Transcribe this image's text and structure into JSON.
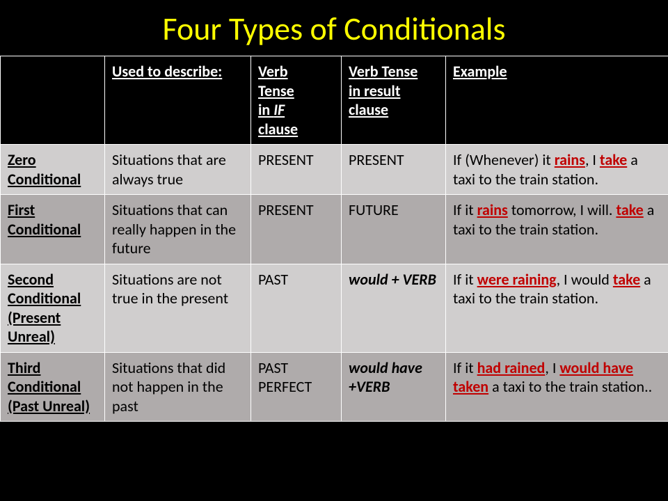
{
  "title": "Four Types of Conditionals",
  "headers": {
    "h1": "",
    "h2": "Used to describe:",
    "h3_l1": "Verb",
    "h3_l2": "Tense",
    "h3_l3": " in ",
    "h3_if": "IF",
    "h3_clause": "clause",
    "h4_l1": "Verb  Tense",
    "h4_l2": "in result clause",
    "h5": "Example"
  },
  "rows": [
    {
      "name": "Zero Conditional",
      "desc": "Situations that are always true",
      "if": "PRESENT",
      "result": "PRESENT",
      "ex_pre": "If (Whenever) it ",
      "ex_v1": "rains",
      "ex_mid": ", I ",
      "ex_v2": "take",
      "ex_post": " a taxi to the train station."
    },
    {
      "name": "First Conditional",
      "desc": "Situations that can really happen in the future",
      "if": "PRESENT",
      "result": "FUTURE",
      "ex_pre": "If it ",
      "ex_v1": "rains",
      "ex_mid": " tomorrow, I will. ",
      "ex_v2": "take",
      "ex_post": " a taxi to the train station."
    },
    {
      "name": "Second Conditional (Present Unreal)",
      "desc": "Situations  are not true in the present",
      "if": "PAST",
      "result_pre": "would",
      "result_post": " + VERB",
      "ex_pre": "If it ",
      "ex_v1": "were raining",
      "ex_mid": ", I would ",
      "ex_v2": "take",
      "ex_post": " a taxi to the train station."
    },
    {
      "name": "Third Conditional (Past Unreal)",
      "desc": "Situations that did not happen in the past",
      "if": "PAST PERFECT",
      "result_pre": "would have",
      "result_post": " +VERB",
      "ex_pre": "If it ",
      "ex_v1": "had rained",
      "ex_mid": ", I ",
      "ex_v2": "would have taken",
      "ex_post": " a taxi to the train station.."
    }
  ],
  "colors": {
    "title": "#ffff00",
    "background": "#000000",
    "light_row": "#d0cece",
    "dark_row": "#afabab",
    "accent": "#c00000",
    "border": "#ffffff"
  },
  "fontsize": {
    "title": 46,
    "cell": 22
  }
}
